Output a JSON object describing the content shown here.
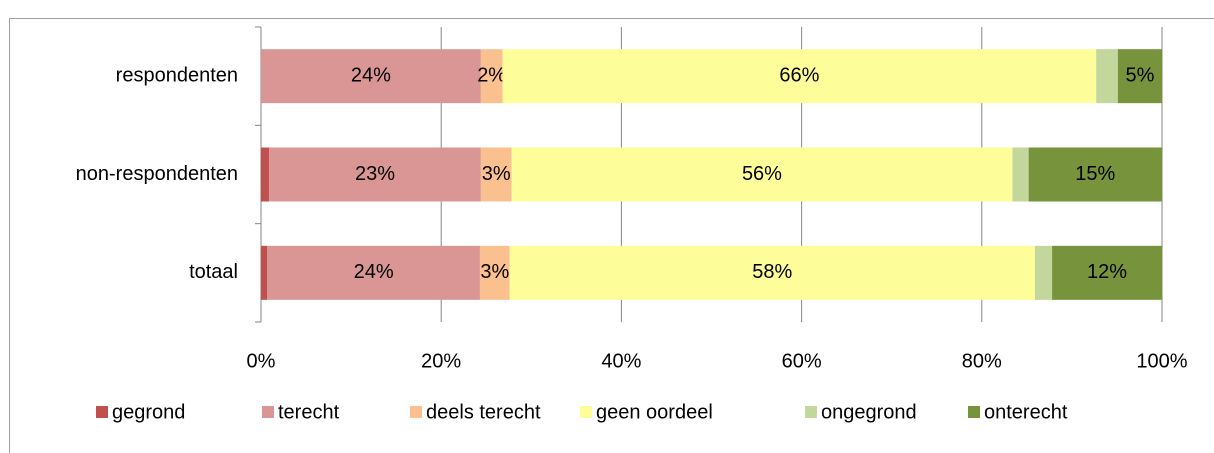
{
  "chart_data": {
    "type": "stacked-barh",
    "categories": [
      "respondenten",
      "non-respondenten",
      "totaal"
    ],
    "series": [
      {
        "name": "gegrond",
        "color": "#c0504d",
        "values": [
          0,
          0.9,
          0.7
        ]
      },
      {
        "name": "terecht",
        "color": "#d99694",
        "values": [
          24.4,
          23.5,
          23.6
        ],
        "value_labels": [
          "24%",
          "23%",
          "24%"
        ]
      },
      {
        "name": "deels terecht",
        "color": "#fac090",
        "values": [
          2.4,
          3.4,
          3.3
        ],
        "value_labels": [
          "2%",
          "3%",
          "3%"
        ]
      },
      {
        "name": "geen oordeel",
        "color": "#fdfd9a",
        "values": [
          65.9,
          55.6,
          58.3
        ],
        "value_labels": [
          "66%",
          "56%",
          "58%"
        ]
      },
      {
        "name": "ongegrond",
        "color": "#c3d69b",
        "values": [
          2.4,
          1.8,
          1.9
        ]
      },
      {
        "name": "onterecht",
        "color": "#77933c",
        "values": [
          4.9,
          14.8,
          12.2
        ],
        "value_labels": [
          "5%",
          "15%",
          "12%"
        ]
      }
    ],
    "xlim": [
      0,
      100
    ],
    "xticks": [
      {
        "value": 0,
        "label": "0%"
      },
      {
        "value": 20,
        "label": "20%"
      },
      {
        "value": 40,
        "label": "40%"
      },
      {
        "value": 60,
        "label": "60%"
      },
      {
        "value": 80,
        "label": "80%"
      },
      {
        "value": 100,
        "label": "100%"
      }
    ],
    "grid": true,
    "legend": "bottom"
  }
}
